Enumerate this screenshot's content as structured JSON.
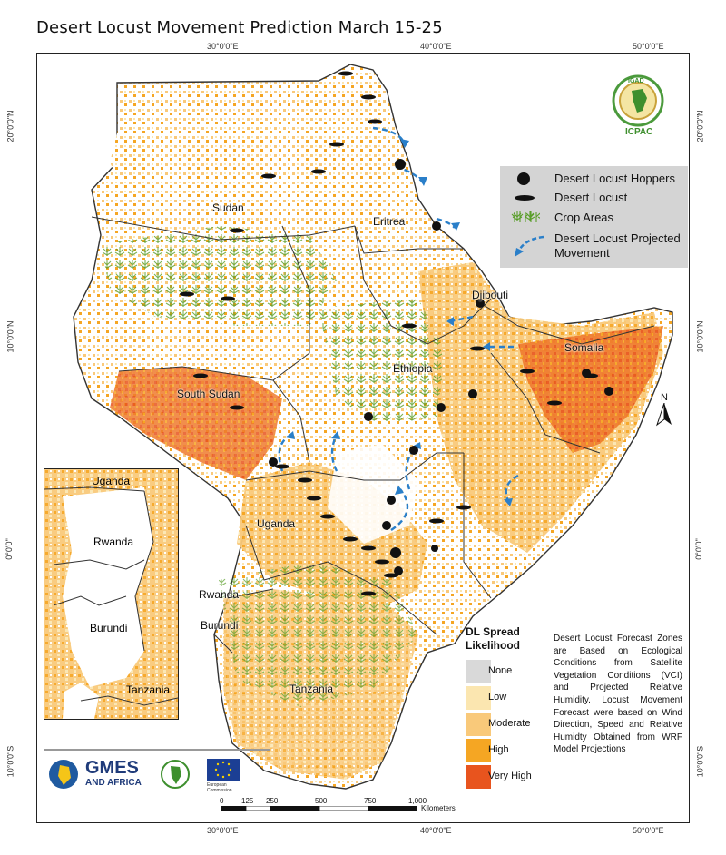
{
  "title": "Desert Locust Movement Prediction March 15-25",
  "axes": {
    "top_ticks": [
      "30°0'0\"E",
      "40°0'0\"E",
      "50°0'0\"E"
    ],
    "bottom_ticks": [
      "30°0'0\"E",
      "40°0'0\"E",
      "50°0'0\"E"
    ],
    "left_ticks": [
      "20°0'0\"N",
      "10°0'0\"N",
      "0°0'0\"",
      "10°0'0\"S"
    ],
    "right_ticks": [
      "20°0'0\"N",
      "10°0'0\"N",
      "0°0'0\"",
      "10°0'0\"S"
    ]
  },
  "countries": {
    "sudan": "Sudan",
    "eritrea": "Eritrea",
    "djibouti": "Djibouti",
    "somalia": "Somalia",
    "ethiopia": "Ethiopia",
    "south_sudan": "South Sudan",
    "uganda": "Uganda",
    "rwanda": "Rwanda",
    "burundi": "Burundi",
    "tanzania": "Tanzania"
  },
  "inset": {
    "uganda": "Uganda",
    "rwanda": "Rwanda",
    "burundi": "Burundi",
    "tanzania": "Tanzania"
  },
  "legend": {
    "hoppers": "Desert Locust Hoppers",
    "locust": "Desert Locust",
    "crop": "Crop Areas",
    "movement": "Desert Locust Projected Movement"
  },
  "spread": {
    "title": "DL Spread Likelihood",
    "levels": [
      {
        "label": "None",
        "color": "#d9d9d9"
      },
      {
        "label": "Low",
        "color": "#fbe6b0"
      },
      {
        "label": "Moderate",
        "color": "#f9c97a"
      },
      {
        "label": "High",
        "color": "#f5a623"
      },
      {
        "label": "Very High",
        "color": "#e8541e"
      }
    ]
  },
  "note": "Desert Locust Forecast Zones are Based on Ecological Conditions from Satellite Vegetation Conditions (VCI) and Projected Relative Humidity. Locust Movement Forecast were based on Wind Direction, Speed and Relative Humidty Obtained from WRF Model Projections",
  "north_arrow": "N",
  "logos": {
    "icpac": "ICPAC",
    "igad": "IGAD",
    "gmes_line1": "GMES",
    "gmes_line2": "AND AFRICA",
    "eu": "European Commission"
  },
  "scale": {
    "ticks": [
      "0",
      "125",
      "250",
      "500",
      "750",
      "1,000"
    ],
    "unit": "Kilometers"
  },
  "colors": {
    "none": "#d9d9d9",
    "low": "#fbe6b0",
    "moderate": "#f9c97a",
    "high": "#f5a623",
    "very_high": "#e8541e",
    "crop": "#5a9e2a",
    "arrow": "#2a7fc9"
  }
}
